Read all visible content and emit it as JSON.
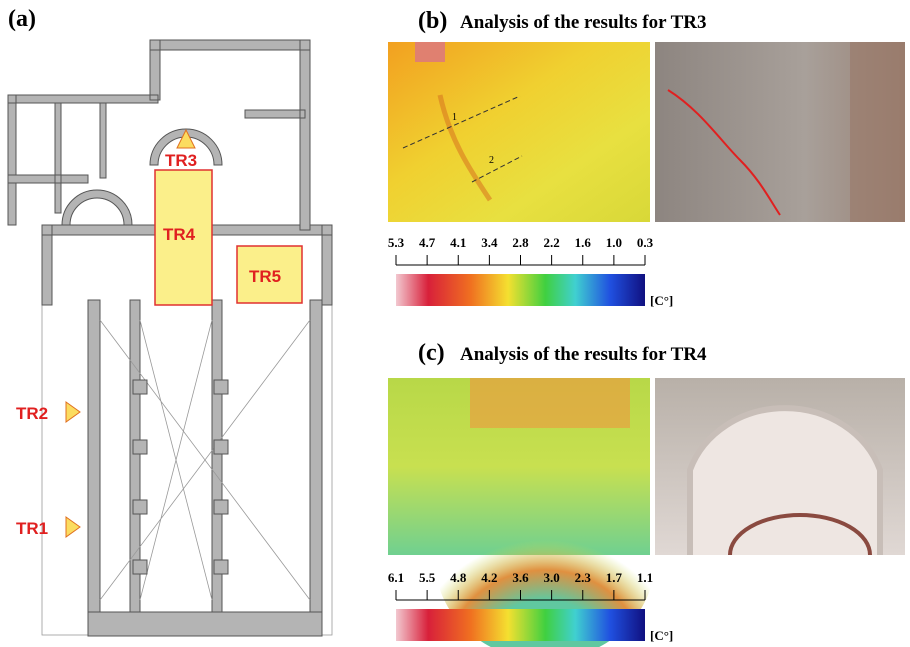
{
  "panel_a": {
    "label": "(a)",
    "markers": [
      "TR1",
      "TR2",
      "TR3",
      "TR4",
      "TR5"
    ]
  },
  "panel_b": {
    "label": "(b)",
    "title": "Analysis of the results for TR3",
    "line_labels": [
      "1",
      "2"
    ],
    "scale_ticks": [
      "5.3",
      "4.7",
      "4.1",
      "3.4",
      "2.8",
      "2.2",
      "1.6",
      "1.0",
      "0.3"
    ],
    "unit": "[C°]"
  },
  "panel_c": {
    "label": "(c)",
    "title": "Analysis of the results for TR4",
    "scale_ticks": [
      "6.1",
      "5.5",
      "4.8",
      "4.2",
      "3.6",
      "3.0",
      "2.3",
      "1.7",
      "1.1"
    ],
    "unit": "[C°]"
  }
}
